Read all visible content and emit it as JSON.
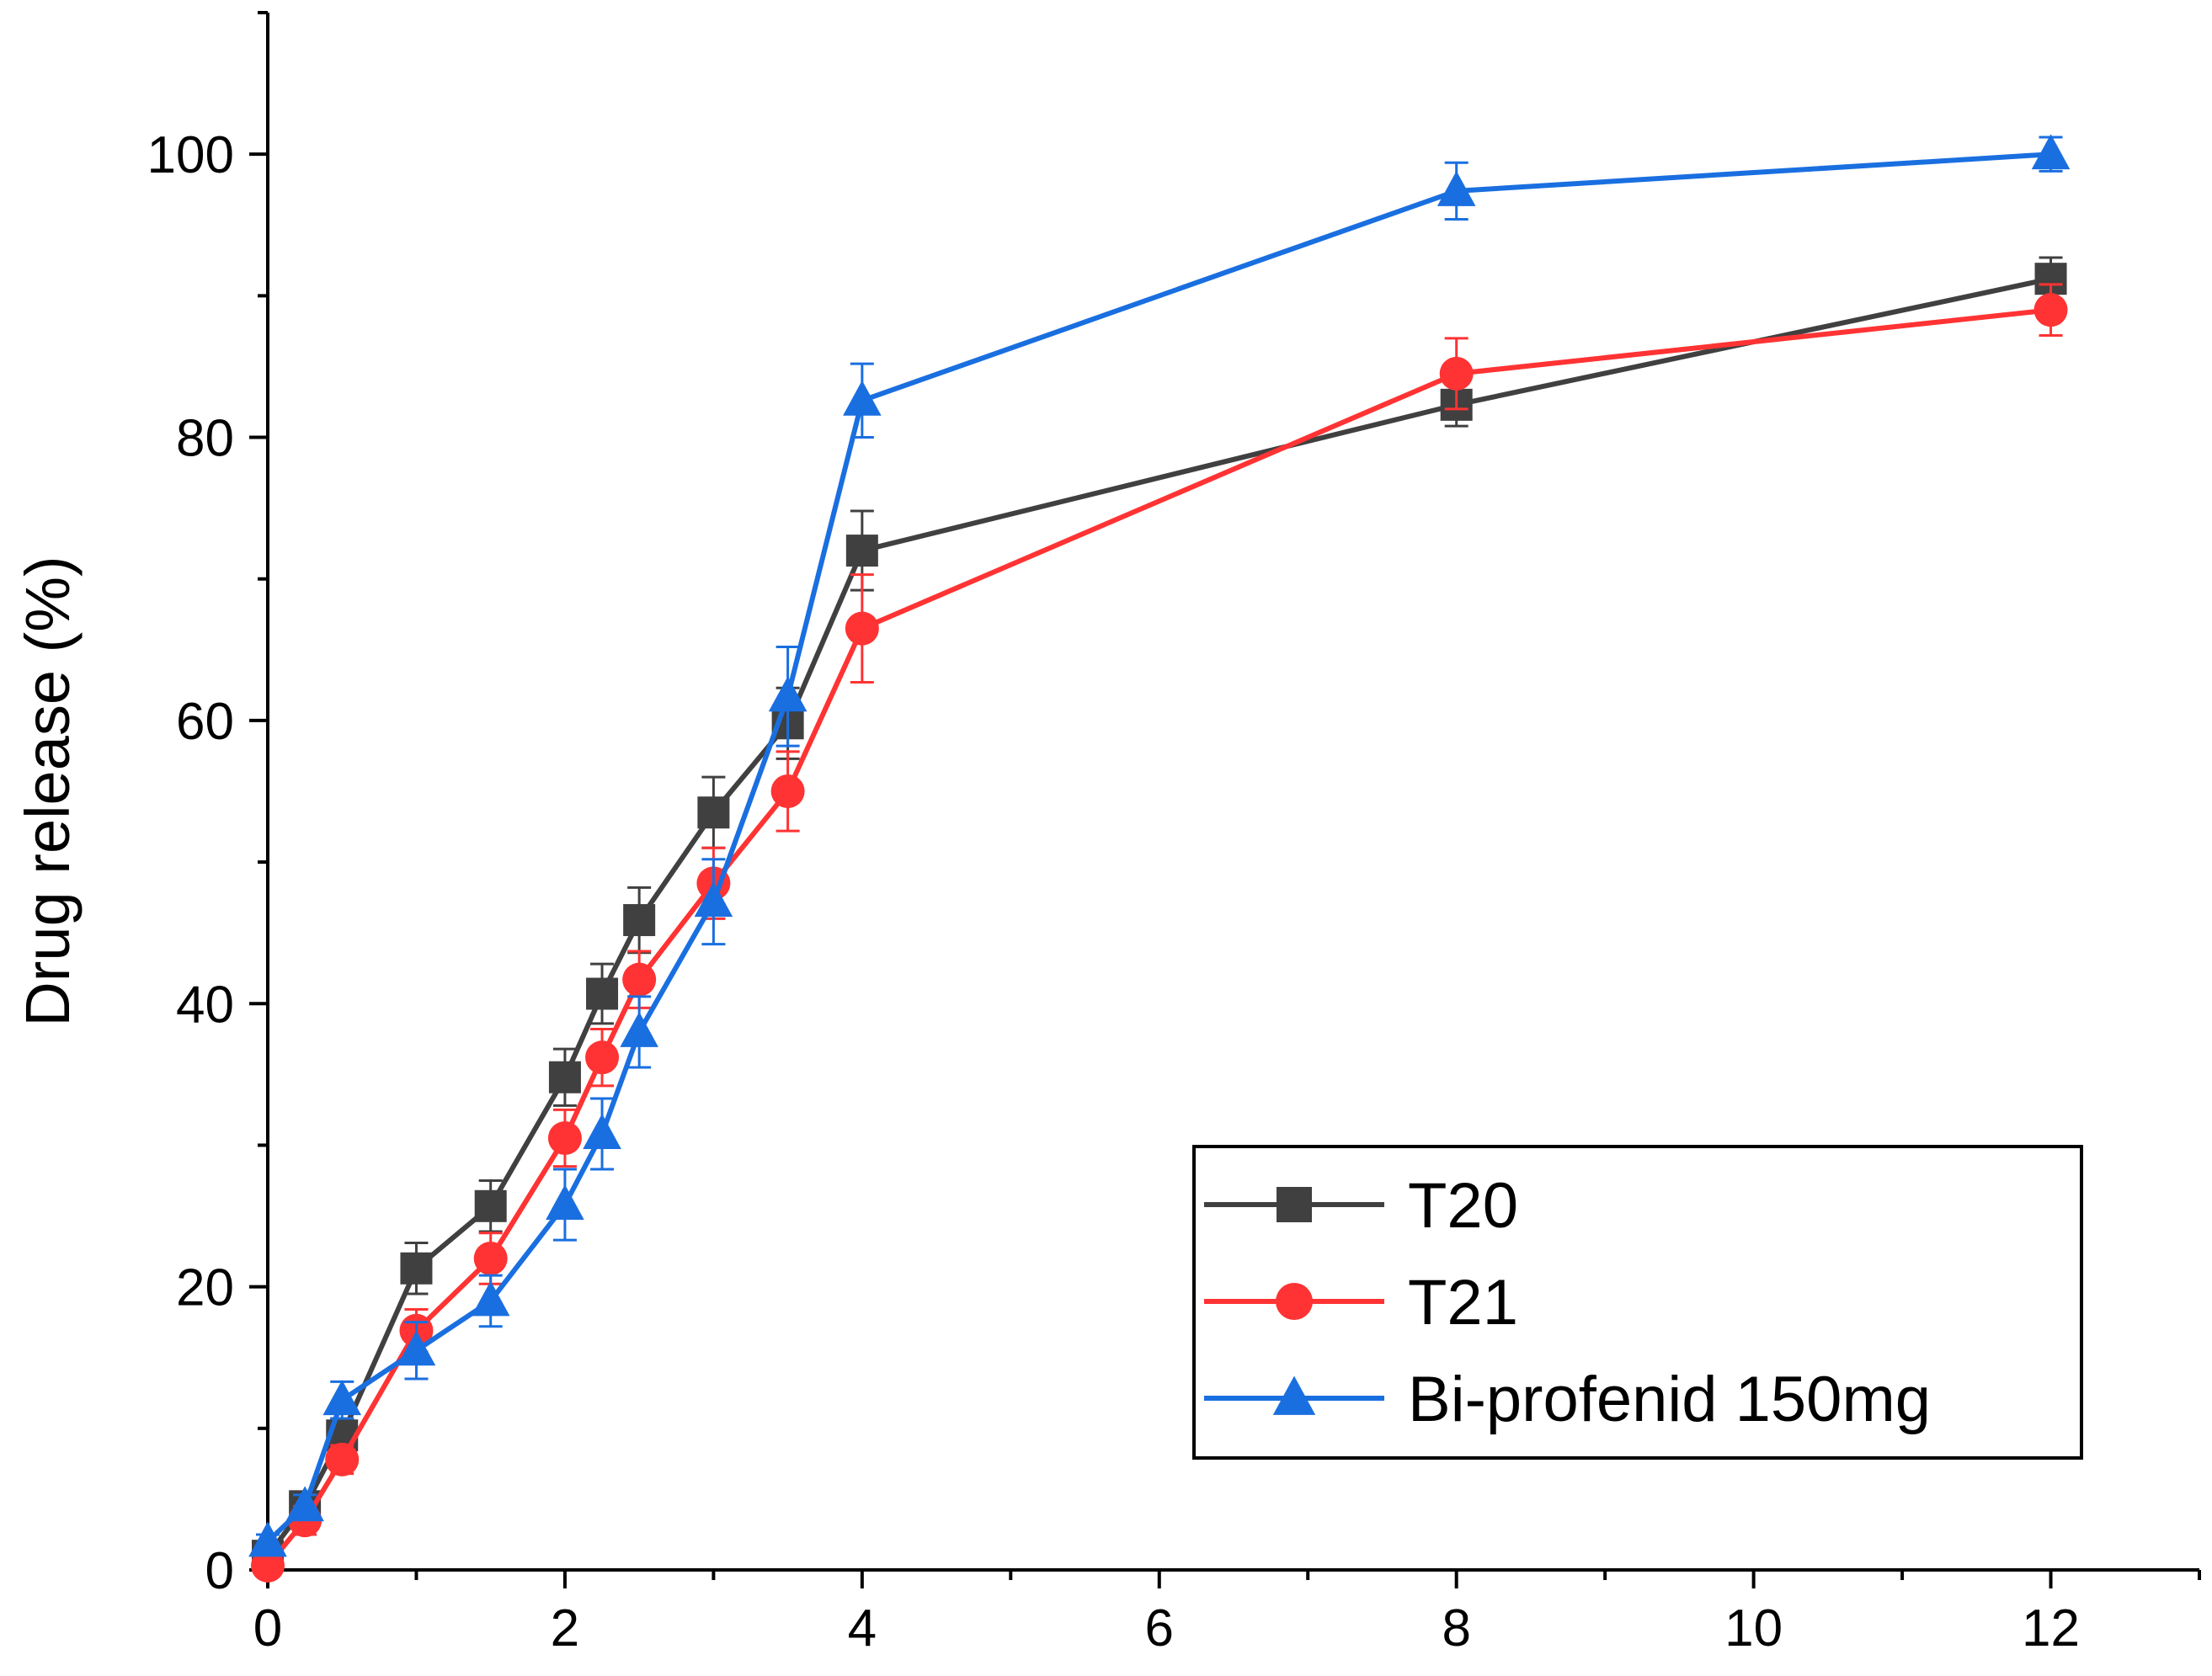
{
  "chart_data": {
    "type": "line",
    "title": "",
    "xlabel": "",
    "ylabel": "Drug release (%)",
    "xlim": [
      0,
      13
    ],
    "ylim": [
      0,
      110
    ],
    "xticks": [
      0,
      2,
      4,
      6,
      8,
      10,
      12
    ],
    "yticks": [
      0,
      20,
      40,
      60,
      80,
      100
    ],
    "x_minor_step": 1,
    "y_minor_step": 10,
    "legend_position": "bottom-right",
    "series": [
      {
        "name": "T20",
        "color": "#404040",
        "marker": "square",
        "x": [
          0,
          0.25,
          0.5,
          1,
          1.5,
          2,
          2.25,
          2.5,
          3,
          3.5,
          4,
          8,
          12
        ],
        "y": [
          1.0,
          4.5,
          9.5,
          21.3,
          25.7,
          34.8,
          40.7,
          45.9,
          53.5,
          59.8,
          72.0,
          82.3,
          91.2
        ],
        "err": [
          1.0,
          1.0,
          1.2,
          1.8,
          1.8,
          2.0,
          2.1,
          2.3,
          2.5,
          2.5,
          2.8,
          1.5,
          1.5
        ]
      },
      {
        "name": "T21",
        "color": "#ff3333",
        "marker": "circle",
        "x": [
          0,
          0.25,
          0.5,
          1,
          1.5,
          2,
          2.25,
          2.5,
          3,
          3.5,
          4,
          8,
          12
        ],
        "y": [
          0.3,
          3.5,
          7.8,
          16.9,
          22.0,
          30.5,
          36.2,
          41.7,
          48.5,
          55.0,
          66.5,
          84.5,
          89.0
        ],
        "err": [
          0.5,
          1.0,
          1.0,
          1.5,
          1.8,
          2.0,
          2.0,
          2.0,
          2.5,
          2.8,
          3.8,
          2.5,
          1.8
        ]
      },
      {
        "name": "Bi-profenid 150mg",
        "color": "#1a6fe0",
        "marker": "triangle",
        "x": [
          0,
          0.25,
          0.5,
          1,
          1.5,
          2,
          2.25,
          2.5,
          3,
          3.5,
          4,
          8,
          12
        ],
        "y": [
          2.0,
          4.5,
          12.0,
          15.5,
          19.0,
          25.8,
          30.8,
          38.0,
          47.2,
          61.7,
          82.6,
          97.4,
          100.0
        ],
        "err": [
          0.5,
          0.8,
          1.3,
          2.0,
          1.8,
          2.5,
          2.5,
          2.5,
          3.0,
          3.5,
          2.6,
          2.0,
          1.2
        ]
      }
    ]
  }
}
